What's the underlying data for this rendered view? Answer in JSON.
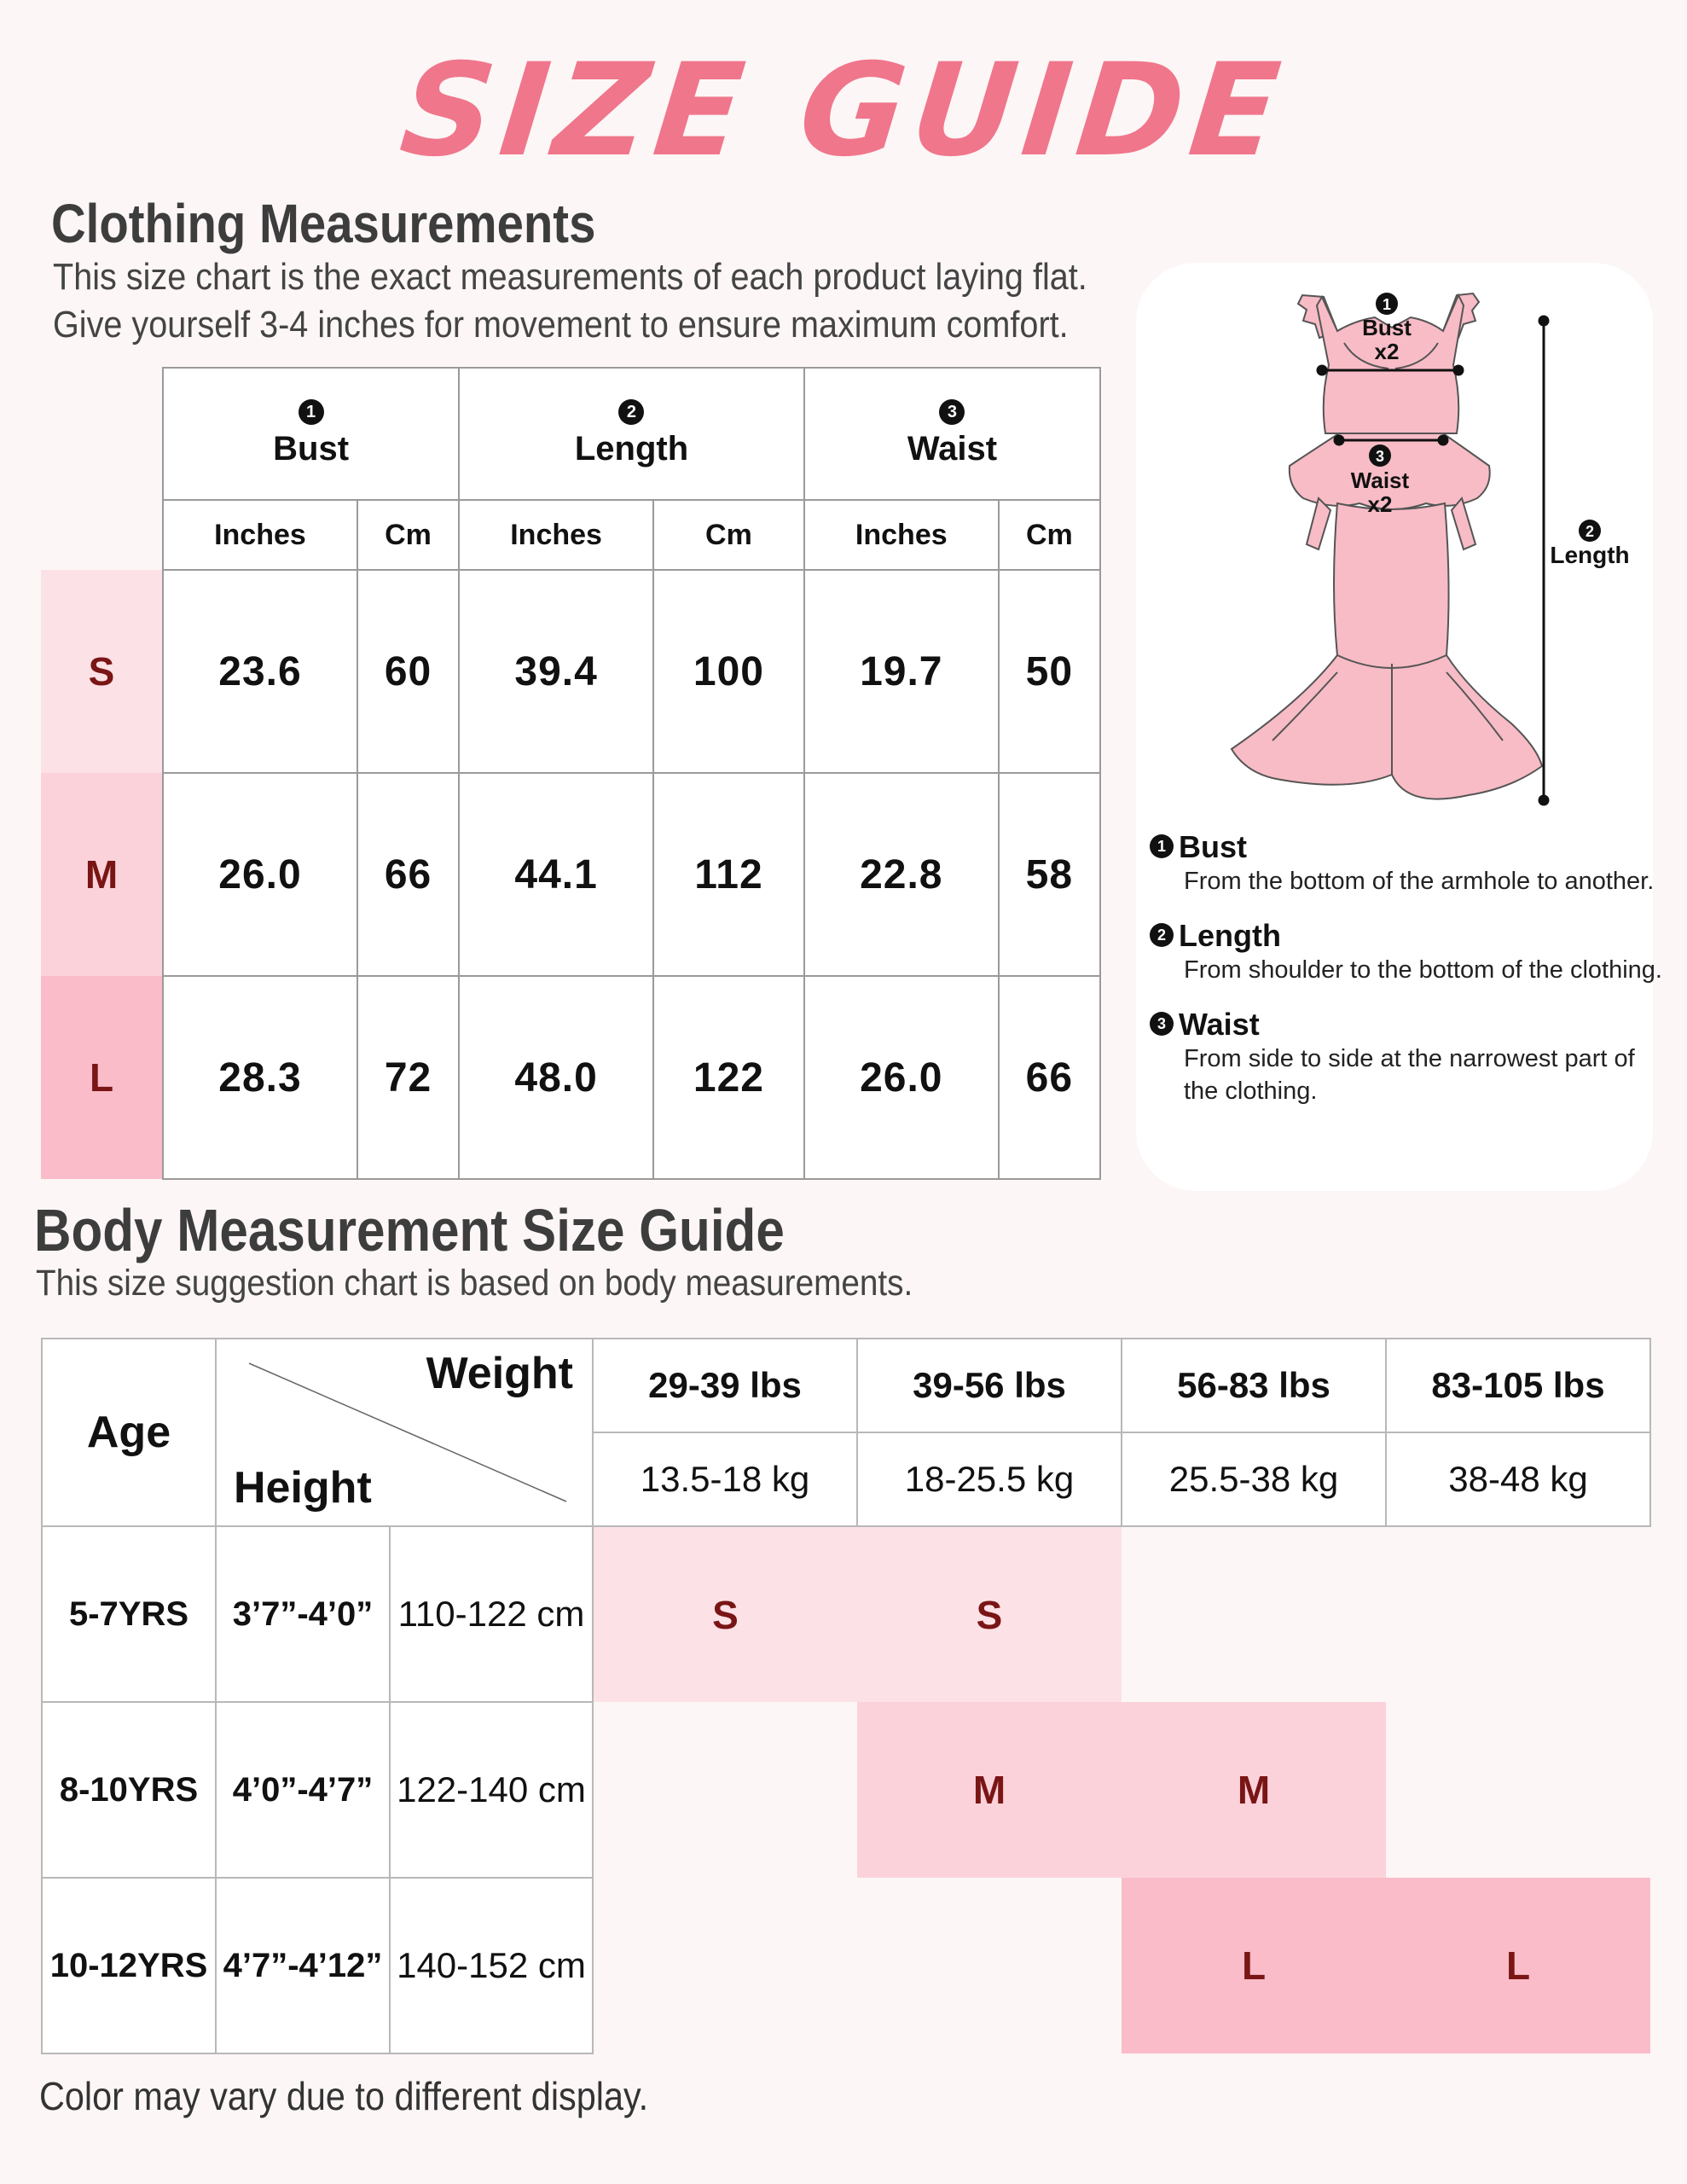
{
  "title": "SIZE GUIDE",
  "clothing": {
    "heading": "Clothing Measurements",
    "intro_line1": "This size chart is the exact measurements of each product laying flat.",
    "intro_line2": "Give yourself 3-4 inches for movement to ensure maximum comfort.",
    "groups": [
      {
        "num": "1",
        "label": "Bust"
      },
      {
        "num": "2",
        "label": "Length"
      },
      {
        "num": "3",
        "label": "Waist"
      }
    ],
    "units": [
      "Inches",
      "Cm",
      "Inches",
      "Cm",
      "Inches",
      "Cm"
    ],
    "rows": [
      {
        "size": "S",
        "values": [
          "23.6",
          "60",
          "39.4",
          "100",
          "19.7",
          "50"
        ]
      },
      {
        "size": "M",
        "values": [
          "26.0",
          "66",
          "44.1",
          "112",
          "22.8",
          "58"
        ]
      },
      {
        "size": "L",
        "values": [
          "28.3",
          "72",
          "48.0",
          "122",
          "26.0",
          "66"
        ]
      }
    ]
  },
  "diagram": {
    "bust_label": "Bust",
    "bust_multiplier": "x2",
    "waist_label": "Waist",
    "waist_multiplier": "x2",
    "length_label": "Length",
    "badge1": "1",
    "badge2": "2",
    "badge3": "3"
  },
  "legend": [
    {
      "num": "1",
      "title": "Bust",
      "desc": [
        "From the bottom of the armhole to another."
      ]
    },
    {
      "num": "2",
      "title": "Length",
      "desc": [
        "From shoulder to the bottom of the clothing."
      ]
    },
    {
      "num": "3",
      "title": "Waist",
      "desc": [
        "From side to side at the narrowest part of",
        "the clothing."
      ]
    }
  ],
  "body": {
    "heading": "Body Measurement Size Guide",
    "subheading": "This size suggestion chart is based on body measurements.",
    "age_label": "Age",
    "weight_label": "Weight",
    "height_label": "Height",
    "weights_lbs": [
      "29-39 lbs",
      "39-56 lbs",
      "56-83 lbs",
      "83-105 lbs"
    ],
    "weights_kg": [
      "13.5-18 kg",
      "18-25.5 kg",
      "25.5-38 kg",
      "38-48 kg"
    ],
    "rows": [
      {
        "age": "5-7YRS",
        "height_in": "3’7”-4’0”",
        "height_cm": "110-122 cm",
        "sizes": [
          "S",
          "S",
          "",
          ""
        ]
      },
      {
        "age": "8-10YRS",
        "height_in": "4’0”-4’7”",
        "height_cm": "122-140 cm",
        "sizes": [
          "",
          "M",
          "M",
          ""
        ]
      },
      {
        "age": "10-12YRS",
        "height_in": "4’7”-4’12”",
        "height_cm": "140-152 cm",
        "sizes": [
          "",
          "",
          "L",
          "L"
        ]
      }
    ]
  },
  "footnote": "Color may vary due to different display.",
  "colors": {
    "title": "#f0768b",
    "size_s": "#fce1e6",
    "size_m": "#fbd2da",
    "size_l": "#f9bcc8",
    "size_text": "#7a1515",
    "dress": "#f8bcc6"
  }
}
